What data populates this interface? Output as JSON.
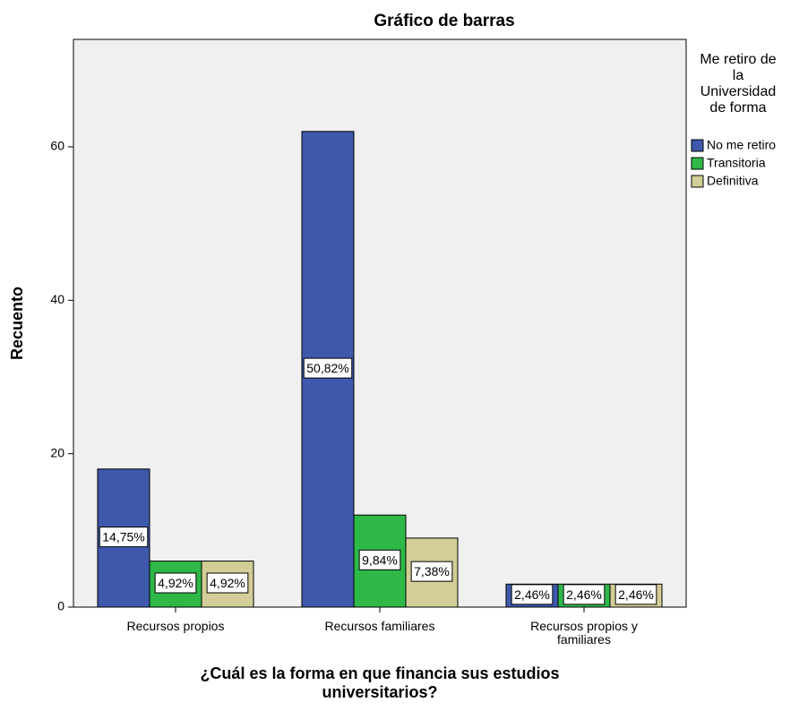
{
  "chart_data": {
    "type": "bar",
    "title": "Gráfico de barras",
    "x_label": "¿Cuál es la forma en que financia sus estudios universitarios?",
    "y_label": "Recuento",
    "legend_title": "Me retiro de la Universidad de forma",
    "legend_position": "right",
    "categories": [
      "Recursos propios",
      "Recursos familiares",
      "Recursos propios y familiares"
    ],
    "series": [
      {
        "name": "No me retiro",
        "color": "#3e58ac",
        "values": [
          18,
          62,
          3
        ],
        "value_labels": [
          "14,75%",
          "50,82%",
          "2,46%"
        ]
      },
      {
        "name": "Transitoria",
        "color": "#2eb848",
        "values": [
          6,
          12,
          3
        ],
        "value_labels": [
          "4,92%",
          "9,84%",
          "2,46%"
        ]
      },
      {
        "name": "Definitiva",
        "color": "#d3ce97",
        "values": [
          6,
          9,
          3
        ],
        "value_labels": [
          "4,92%",
          "7,38%",
          "2,46%"
        ]
      }
    ],
    "ylim": [
      0,
      74
    ],
    "yticks": [
      0,
      20,
      40,
      60
    ],
    "grid": false
  }
}
